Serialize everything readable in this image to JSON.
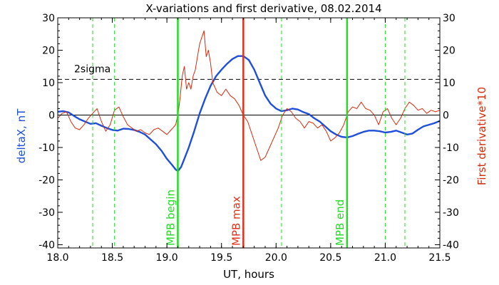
{
  "chart_data": {
    "type": "line",
    "title": "X-variations and first derivative, 08.02.2014",
    "xlabel": "UT, hours",
    "ylabel_left": "deltaX, nT",
    "ylabel_right": "First derivative*10",
    "xlim": [
      18.0,
      21.5
    ],
    "ylim": [
      -41,
      30
    ],
    "x_ticks": [
      "18.0",
      "18.5",
      "19.0",
      "19.5",
      "20.0",
      "20.5",
      "21.0",
      "21.5"
    ],
    "y_ticks_left": [
      "-40",
      "-30",
      "-20",
      "-10",
      "0",
      "10",
      "20",
      "30"
    ],
    "y_ticks_right": [
      "-40",
      "-30",
      "-20",
      "-10",
      "0",
      "10",
      "20",
      "30"
    ],
    "sigma_level": 11,
    "sigma_label": "2sigma",
    "colors": {
      "deltaX": "#1f4fd8",
      "derivative": "#d52a0b",
      "mpb_green": "#22dd22",
      "mpb_red": "#e0321a"
    },
    "series": [
      {
        "key": "deltaX",
        "x": [
          18.0,
          18.05,
          18.1,
          18.15,
          18.2,
          18.25,
          18.3,
          18.35,
          18.4,
          18.45,
          18.5,
          18.55,
          18.6,
          18.65,
          18.7,
          18.75,
          18.8,
          18.85,
          18.9,
          18.95,
          19.0,
          19.05,
          19.08,
          19.1,
          19.13,
          19.16,
          19.2,
          19.25,
          19.3,
          19.35,
          19.4,
          19.45,
          19.5,
          19.55,
          19.6,
          19.65,
          19.7,
          19.75,
          19.8,
          19.85,
          19.9,
          19.95,
          20.0,
          20.05,
          20.1,
          20.15,
          20.2,
          20.25,
          20.3,
          20.35,
          20.4,
          20.45,
          20.5,
          20.55,
          20.6,
          20.65,
          20.7,
          20.75,
          20.8,
          20.85,
          20.9,
          20.95,
          21.0,
          21.05,
          21.1,
          21.15,
          21.2,
          21.25,
          21.3,
          21.35,
          21.4,
          21.45,
          21.5
        ],
        "y": [
          1.0,
          1.2,
          0.8,
          -0.3,
          -1.3,
          -2.0,
          -2.7,
          -2.5,
          -3.3,
          -4.0,
          -4.6,
          -4.8,
          -4.2,
          -4.3,
          -4.6,
          -5.2,
          -6.0,
          -7.5,
          -9.0,
          -11.0,
          -13.5,
          -15.5,
          -16.8,
          -17.3,
          -16.0,
          -13.5,
          -10.0,
          -5.0,
          0.5,
          5.0,
          9.0,
          12.0,
          14.0,
          15.8,
          17.3,
          18.2,
          18.2,
          17.0,
          14.0,
          10.0,
          6.0,
          3.5,
          2.0,
          1.2,
          1.5,
          2.0,
          1.7,
          0.9,
          0.3,
          -1.0,
          -2.0,
          -3.5,
          -5.0,
          -6.0,
          -6.7,
          -6.9,
          -6.5,
          -5.8,
          -5.2,
          -4.8,
          -4.8,
          -5.0,
          -5.4,
          -5.2,
          -4.8,
          -5.4,
          -6.0,
          -5.7,
          -4.5,
          -3.5,
          -3.0,
          -2.5,
          -1.8
        ]
      },
      {
        "key": "derivative",
        "x": [
          18.0,
          18.04,
          18.08,
          18.12,
          18.16,
          18.2,
          18.24,
          18.28,
          18.32,
          18.36,
          18.4,
          18.44,
          18.48,
          18.52,
          18.56,
          18.6,
          18.64,
          18.68,
          18.72,
          18.76,
          18.8,
          18.84,
          18.88,
          18.92,
          18.96,
          19.0,
          19.04,
          19.08,
          19.1,
          19.12,
          19.14,
          19.16,
          19.18,
          19.2,
          19.22,
          19.24,
          19.26,
          19.28,
          19.3,
          19.32,
          19.34,
          19.36,
          19.38,
          19.4,
          19.42,
          19.46,
          19.5,
          19.54,
          19.58,
          19.62,
          19.66,
          19.7,
          19.74,
          19.78,
          19.82,
          19.86,
          19.9,
          19.94,
          19.98,
          20.02,
          20.06,
          20.1,
          20.14,
          20.18,
          20.22,
          20.26,
          20.3,
          20.34,
          20.38,
          20.42,
          20.46,
          20.5,
          20.54,
          20.58,
          20.62,
          20.66,
          20.7,
          20.74,
          20.78,
          20.82,
          20.86,
          20.9,
          20.94,
          20.98,
          21.02,
          21.06,
          21.1,
          21.14,
          21.18,
          21.22,
          21.26,
          21.3,
          21.34,
          21.38,
          21.42,
          21.46,
          21.5
        ],
        "y": [
          -1.0,
          0.5,
          1.0,
          -2.0,
          -4.0,
          -4.5,
          -3.0,
          -1.0,
          0.5,
          2.0,
          -2.0,
          -5.0,
          -3.0,
          1.5,
          2.5,
          -0.5,
          -3.0,
          -4.0,
          -5.0,
          -4.5,
          -5.5,
          -6.0,
          -4.5,
          -4.0,
          -5.0,
          -6.0,
          -4.5,
          -3.0,
          0.0,
          5.0,
          12.0,
          15.0,
          8.0,
          10.0,
          8.0,
          12.0,
          14.0,
          18.0,
          22.0,
          24.0,
          26.0,
          18.0,
          20.0,
          16.0,
          10.0,
          7.0,
          6.0,
          8.0,
          6.0,
          5.0,
          3.0,
          0.0,
          -2.0,
          -6.0,
          -10.0,
          -14.0,
          -13.0,
          -10.0,
          -7.0,
          -4.0,
          0.0,
          2.0,
          1.0,
          -1.0,
          -2.0,
          -4.0,
          -2.0,
          -2.5,
          -4.0,
          -3.0,
          -5.0,
          -8.0,
          -7.0,
          -5.5,
          -3.0,
          1.0,
          2.5,
          2.0,
          4.0,
          2.0,
          1.5,
          0.0,
          -3.0,
          1.0,
          2.0,
          -1.0,
          -3.0,
          -1.0,
          2.0,
          4.0,
          3.0,
          1.5,
          2.0,
          0.5,
          1.5,
          1.0,
          1.5
        ]
      }
    ],
    "markers": [
      {
        "x": 18.32,
        "style": "dashed"
      },
      {
        "x": 18.52,
        "style": "dashed"
      },
      {
        "x": 20.05,
        "style": "dashed"
      },
      {
        "x": 21.0,
        "style": "dashed"
      },
      {
        "x": 21.18,
        "style": "dashed"
      },
      {
        "x": 19.1,
        "style": "solid",
        "label": "MPB begin",
        "color": "green"
      },
      {
        "x": 19.7,
        "style": "solid",
        "label": "MPB max",
        "color": "red"
      },
      {
        "x": 20.65,
        "style": "solid",
        "label": "MPB end",
        "color": "green"
      }
    ]
  }
}
